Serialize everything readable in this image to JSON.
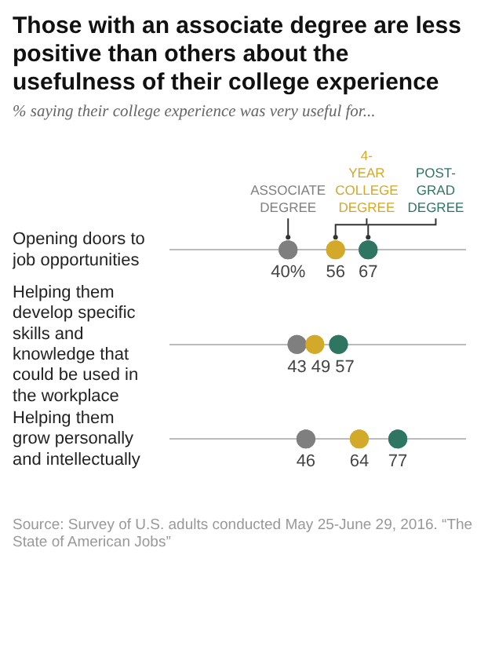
{
  "chart_data": {
    "type": "scatter",
    "orientation": "horizontal",
    "title": "Those with an associate degree are less positive than others about the usefulness of their college experience",
    "subtitle": "% saying their college experience was very useful for...",
    "categories": [
      "Opening doors to job opportunities",
      "Helping them develop specific skills and knowledge that could be used in the workplace",
      "Helping them grow personally and intellectually"
    ],
    "series": [
      {
        "name": "ASSOCIATE DEGREE",
        "color": "#7f7f7f",
        "values": [
          40,
          43,
          46
        ],
        "value_labels": [
          "40%",
          "43",
          "46"
        ]
      },
      {
        "name": "4-YEAR COLLEGE DEGREE",
        "color": "#d3a92a",
        "values": [
          56,
          49,
          64
        ],
        "value_labels": [
          "56",
          "49",
          "64"
        ]
      },
      {
        "name": "POST-GRAD DEGREE",
        "color": "#2f7662",
        "values": [
          67,
          57,
          77
        ],
        "value_labels": [
          "67",
          "57",
          "77"
        ]
      }
    ],
    "xlim": [
      0,
      100
    ],
    "tick_labels": "y",
    "grid": "y",
    "legend": "top",
    "marker": "circle",
    "annotations": [
      "Source: Survey of U.S. adults conducted May 25-June 29, 2016. “The State of American Jobs”"
    ]
  }
}
